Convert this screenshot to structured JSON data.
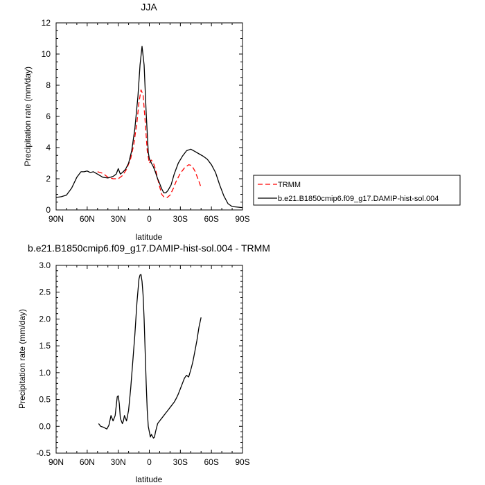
{
  "chart_data": [
    {
      "type": "line",
      "title": "JJA",
      "xlabel": "latitude",
      "ylabel": "Precipitation rate (mm/day)",
      "xlim": [
        -90,
        90
      ],
      "ylim": [
        0,
        12
      ],
      "x_ticks": [
        -90,
        -60,
        -30,
        0,
        30,
        60,
        90
      ],
      "x_tick_labels": [
        "90N",
        "60N",
        "30N",
        "0",
        "30S",
        "60S",
        "90S"
      ],
      "y_ticks": [
        0,
        2,
        4,
        6,
        8,
        10,
        12
      ],
      "y_tick_labels": [
        "0",
        "2",
        "4",
        "6",
        "8",
        "10",
        "12"
      ],
      "legend_position": "right",
      "series": [
        {
          "name": "TRMM",
          "color": "#ff0000",
          "dash": "dashed",
          "x": [
            -50,
            -45,
            -40,
            -35,
            -30,
            -26,
            -22,
            -18,
            -15,
            -12,
            -10,
            -8,
            -6,
            -4,
            -2,
            0,
            2,
            4,
            6,
            8,
            10,
            12,
            14,
            17,
            20,
            23,
            26,
            30,
            34,
            38,
            41,
            44,
            47,
            50
          ],
          "y": [
            2.45,
            2.35,
            2.1,
            2.0,
            2.0,
            2.2,
            2.6,
            3.3,
            4.2,
            5.6,
            6.9,
            7.7,
            7.4,
            5.7,
            3.8,
            3.0,
            3.2,
            3.0,
            2.6,
            2.0,
            1.5,
            1.0,
            0.85,
            0.78,
            0.95,
            1.35,
            1.85,
            2.35,
            2.7,
            2.9,
            2.85,
            2.5,
            2.0,
            1.45
          ]
        },
        {
          "name": "b.e21.B1850cmip6.f09_g17.DAMIP-hist-sol.004",
          "color": "#000000",
          "dash": "solid",
          "x": [
            -90,
            -85,
            -80,
            -75,
            -70,
            -66,
            -63,
            -60,
            -57,
            -54,
            -50,
            -45,
            -40,
            -35,
            -32,
            -30,
            -28,
            -26,
            -23,
            -20,
            -17,
            -14,
            -11,
            -9,
            -7,
            -5,
            -3,
            -1,
            0,
            2,
            4,
            6,
            8,
            10,
            12,
            14,
            16,
            18,
            21,
            24,
            28,
            32,
            36,
            40,
            44,
            48,
            52,
            56,
            60,
            64,
            68,
            72,
            76,
            80,
            85,
            90
          ],
          "y": [
            0.8,
            0.85,
            0.95,
            1.4,
            2.1,
            2.45,
            2.45,
            2.5,
            2.4,
            2.45,
            2.3,
            2.1,
            2.05,
            2.15,
            2.3,
            2.65,
            2.3,
            2.4,
            2.6,
            3.0,
            3.8,
            5.2,
            7.3,
            9.3,
            10.5,
            9.3,
            6.2,
            3.7,
            3.3,
            3.0,
            2.75,
            2.4,
            2.0,
            1.7,
            1.35,
            1.1,
            1.1,
            1.25,
            1.6,
            2.3,
            3.0,
            3.45,
            3.8,
            3.9,
            3.75,
            3.6,
            3.45,
            3.25,
            2.9,
            2.4,
            1.6,
            0.9,
            0.4,
            0.22,
            0.18,
            0.15
          ]
        }
      ]
    },
    {
      "type": "line",
      "title": "b.e21.B1850cmip6.f09_g17.DAMIP-hist-sol.004 - TRMM",
      "xlabel": "latitude",
      "ylabel": "Precipitation rate (mm/day)",
      "xlim": [
        -90,
        90
      ],
      "ylim": [
        -0.5,
        3.0
      ],
      "x_ticks": [
        -90,
        -60,
        -30,
        0,
        30,
        60,
        90
      ],
      "x_tick_labels": [
        "90N",
        "60N",
        "30N",
        "0",
        "30S",
        "60S",
        "90S"
      ],
      "y_ticks": [
        -0.5,
        0,
        0.5,
        1.0,
        1.5,
        2.0,
        2.5,
        3.0
      ],
      "y_tick_labels": [
        "-0.5",
        "0.0",
        "0.5",
        "1.0",
        "1.5",
        "2.0",
        "2.5",
        "3.0"
      ],
      "series": [
        {
          "color": "#000000",
          "dash": "solid",
          "x": [
            -49,
            -47,
            -44,
            -41,
            -39,
            -37,
            -35,
            -33,
            -31,
            -30,
            -29,
            -28,
            -26,
            -25,
            -24,
            -22,
            -20,
            -18,
            -16,
            -14,
            -12,
            -10,
            -9,
            -8,
            -7,
            -6,
            -5,
            -4,
            -3,
            -2,
            -1,
            0,
            1,
            2,
            4,
            5,
            6,
            8,
            10,
            12,
            14,
            16,
            18,
            20,
            22,
            24,
            26,
            28,
            30,
            32,
            34,
            36,
            38,
            40,
            42,
            44,
            46,
            48,
            50
          ],
          "y": [
            0.05,
            0.0,
            -0.02,
            -0.05,
            0.02,
            0.2,
            0.1,
            0.2,
            0.55,
            0.57,
            0.42,
            0.15,
            0.05,
            0.1,
            0.2,
            0.1,
            0.3,
            0.7,
            1.2,
            1.7,
            2.3,
            2.75,
            2.82,
            2.83,
            2.7,
            2.45,
            2.0,
            1.4,
            0.8,
            0.3,
            0.0,
            -0.1,
            -0.2,
            -0.15,
            -0.22,
            -0.2,
            -0.1,
            0.05,
            0.1,
            0.15,
            0.2,
            0.25,
            0.3,
            0.35,
            0.4,
            0.45,
            0.52,
            0.6,
            0.7,
            0.8,
            0.9,
            0.95,
            0.92,
            1.05,
            1.2,
            1.4,
            1.6,
            1.85,
            2.03
          ]
        }
      ]
    }
  ]
}
